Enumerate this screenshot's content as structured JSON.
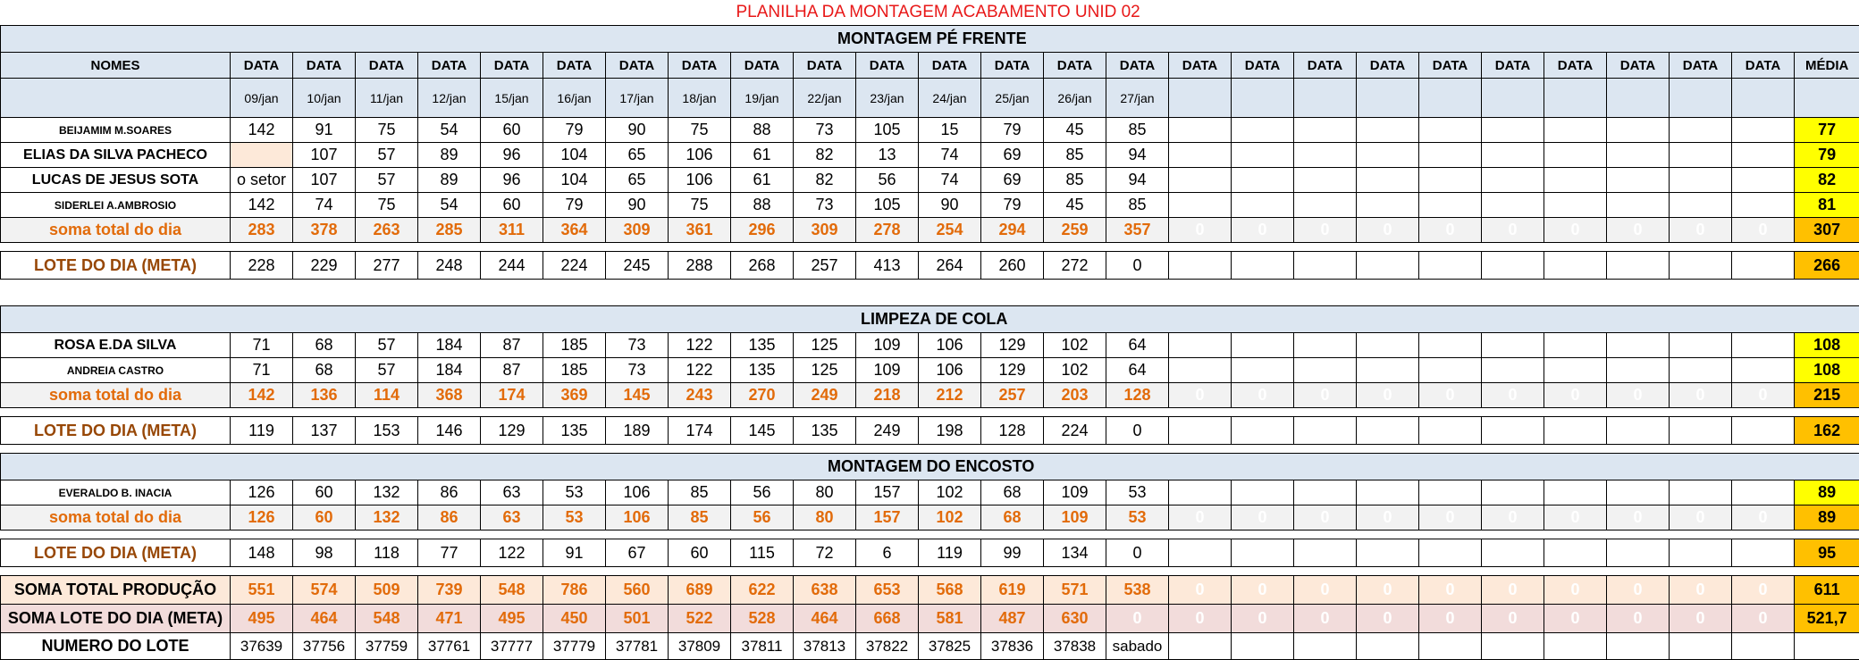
{
  "title": "PLANILHA DA MONTAGEM ACABAMENTO UNID 02",
  "header": {
    "nomes": "NOMES",
    "data_label": "DATA",
    "media_label": "MÉDIA",
    "dates": [
      "09/jan",
      "10/jan",
      "11/jan",
      "12/jan",
      "15/jan",
      "16/jan",
      "17/jan",
      "18/jan",
      "19/jan",
      "22/jan",
      "23/jan",
      "24/jan",
      "25/jan",
      "26/jan",
      "27/jan"
    ]
  },
  "sections": {
    "montagem_pe": {
      "title": "MONTAGEM PÉ FRENTE",
      "workers": [
        {
          "name": "BEIJAMIM M.SOARES",
          "values": [
            "142",
            "91",
            "75",
            "54",
            "60",
            "79",
            "90",
            "75",
            "88",
            "73",
            "105",
            "15",
            "79",
            "45",
            "85"
          ],
          "media": "77"
        },
        {
          "name": "ELIAS DA SILVA PACHECO",
          "values": [
            "",
            "107",
            "57",
            "89",
            "96",
            "104",
            "65",
            "106",
            "61",
            "82",
            "13",
            "74",
            "69",
            "85",
            "94"
          ],
          "media": "79"
        },
        {
          "name": "LUCAS DE JESUS SOTA",
          "values": [
            "o setor",
            "107",
            "57",
            "89",
            "96",
            "104",
            "65",
            "106",
            "61",
            "82",
            "56",
            "74",
            "69",
            "85",
            "94"
          ],
          "media": "82"
        },
        {
          "name": "SIDERLEI A.AMBROSIO",
          "values": [
            "142",
            "74",
            "75",
            "54",
            "60",
            "79",
            "90",
            "75",
            "88",
            "73",
            "105",
            "90",
            "79",
            "45",
            "85"
          ],
          "media": "81"
        }
      ],
      "soma_label": "soma total  do dia",
      "soma_values": [
        "283",
        "378",
        "263",
        "285",
        "311",
        "364",
        "309",
        "361",
        "296",
        "309",
        "278",
        "254",
        "294",
        "259",
        "357"
      ],
      "soma_media": "307",
      "lote_label": "LOTE DO DIA (META)",
      "lote_values": [
        "228",
        "229",
        "277",
        "248",
        "244",
        "224",
        "245",
        "288",
        "268",
        "257",
        "413",
        "264",
        "260",
        "272",
        "0"
      ],
      "lote_media": "266"
    },
    "limpeza": {
      "title": "LIMPEZA DE COLA",
      "workers": [
        {
          "name": "ROSA E.DA SILVA",
          "values": [
            "71",
            "68",
            "57",
            "184",
            "87",
            "185",
            "73",
            "122",
            "135",
            "125",
            "109",
            "106",
            "129",
            "102",
            "64"
          ],
          "media": "108"
        },
        {
          "name": "ANDREIA CASTRO",
          "values": [
            "71",
            "68",
            "57",
            "184",
            "87",
            "185",
            "73",
            "122",
            "135",
            "125",
            "109",
            "106",
            "129",
            "102",
            "64"
          ],
          "media": "108"
        }
      ],
      "soma_label": "soma total  do dia",
      "soma_values": [
        "142",
        "136",
        "114",
        "368",
        "174",
        "369",
        "145",
        "243",
        "270",
        "249",
        "218",
        "212",
        "257",
        "203",
        "128"
      ],
      "soma_media": "215",
      "lote_label": "LOTE DO DIA (META)",
      "lote_values": [
        "119",
        "137",
        "153",
        "146",
        "129",
        "135",
        "189",
        "174",
        "145",
        "135",
        "249",
        "198",
        "128",
        "224",
        "0"
      ],
      "lote_media": "162"
    },
    "encosto": {
      "title": "MONTAGEM DO ENCOSTO",
      "workers": [
        {
          "name": "EVERALDO B. INACIA",
          "values": [
            "126",
            "60",
            "132",
            "86",
            "63",
            "53",
            "106",
            "85",
            "56",
            "80",
            "157",
            "102",
            "68",
            "109",
            "53"
          ],
          "media": "89"
        }
      ],
      "soma_label": "soma total  do dia",
      "soma_values": [
        "126",
        "60",
        "132",
        "86",
        "63",
        "53",
        "106",
        "85",
        "56",
        "80",
        "157",
        "102",
        "68",
        "109",
        "53"
      ],
      "soma_media": "89",
      "lote_label": "LOTE DO DIA (META)",
      "lote_values": [
        "148",
        "98",
        "118",
        "77",
        "122",
        "91",
        "67",
        "60",
        "115",
        "72",
        "6",
        "119",
        "99",
        "134",
        "0"
      ],
      "lote_media": "95"
    }
  },
  "totals": {
    "producao_label": "SOMA TOTAL PRODUÇÃO",
    "producao_values": [
      "551",
      "574",
      "509",
      "739",
      "548",
      "786",
      "560",
      "689",
      "622",
      "638",
      "653",
      "568",
      "619",
      "571",
      "538"
    ],
    "producao_media": "611",
    "meta_label": "SOMA LOTE DO DIA (META)",
    "meta_values": [
      "495",
      "464",
      "548",
      "471",
      "495",
      "450",
      "501",
      "522",
      "528",
      "464",
      "668",
      "581",
      "487",
      "630",
      "0"
    ],
    "meta_media": "521,7",
    "numero_label": "NUMERO DO LOTE",
    "numero_values": [
      "37639",
      "37756",
      "37759",
      "37761",
      "37777",
      "37779",
      "37781",
      "37809",
      "37811",
      "37813",
      "37822",
      "37825",
      "37836",
      "37838",
      "sabado"
    ]
  },
  "zero_text": "0"
}
